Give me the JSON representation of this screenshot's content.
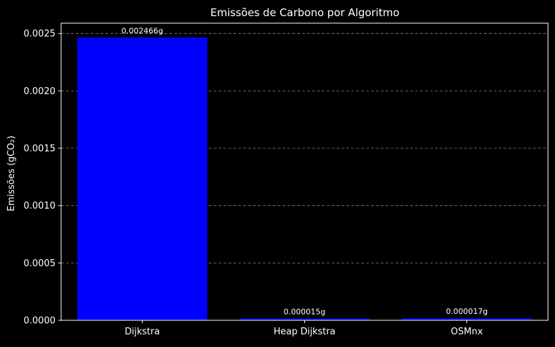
{
  "chart_data": {
    "type": "bar",
    "title": "Emissões de Carbono por Algoritmo",
    "xlabel": "",
    "ylabel": "Emissões (gCO₂)",
    "categories": [
      "Dijkstra",
      "Heap Dijkstra",
      "OSMnx"
    ],
    "values": [
      0.002466,
      1.5e-05,
      1.7e-05
    ],
    "data_labels": [
      "0.002466g",
      "0.000015g",
      "0.000017g"
    ],
    "ylim": [
      0,
      0.00259
    ],
    "yticks": [
      0,
      0.0005,
      0.001,
      0.0015,
      0.002,
      0.0025
    ],
    "ytick_labels": [
      "0.0000",
      "0.0005",
      "0.0010",
      "0.0015",
      "0.0020",
      "0.0025"
    ],
    "grid": "y-dashed",
    "colors": {
      "background": "#000000",
      "bar": "#0000ff",
      "text": "#ffffff",
      "grid": "#808080",
      "axes": "#ffffff"
    }
  }
}
